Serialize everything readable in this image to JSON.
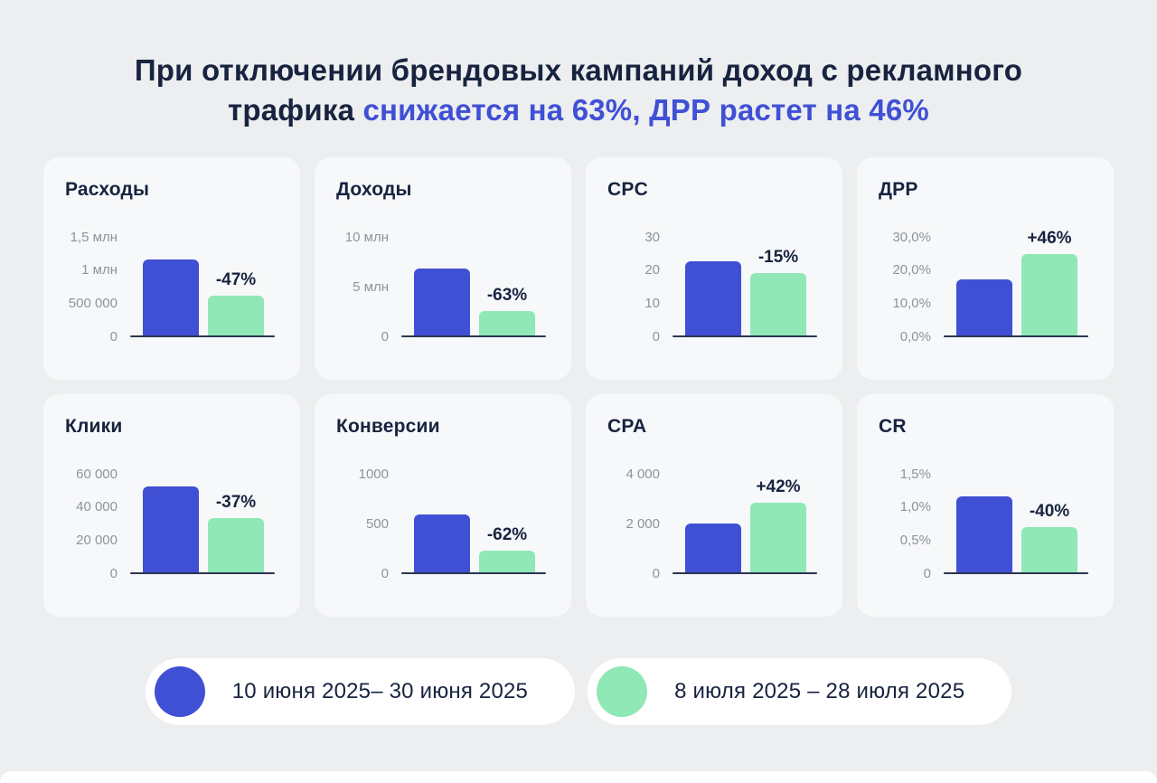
{
  "title": {
    "line1": "При отключении брендовых кампаний доход с рекламного",
    "line2_prefix": "трафика ",
    "line2_highlight": "снижается на 63%, ДРР растет на 46%"
  },
  "colors": {
    "background": "#ECEEF0",
    "card": "#F7F8F9",
    "text_dark": "#17233F",
    "accent_blue": "#4050D4",
    "bar_green": "#8FE8B5",
    "tick_gray": "#8E939C",
    "axis_line": "#2A3550",
    "legend_pill": "#FFFFFF"
  },
  "legend": {
    "items": [
      {
        "name": "period-1",
        "label": "10 июня 2025– 30 июня 2025",
        "color": "#4050D4"
      },
      {
        "name": "period-2",
        "label": "8 июля 2025 – 28 июля 2025",
        "color": "#8FE8B5"
      }
    ]
  },
  "chart_data": [
    {
      "type": "bar",
      "title": "Расходы",
      "ymax": 1.5,
      "grid": false,
      "legend_position": "bottom-shared",
      "categories": [
        "10 июня 2025– 30 июня 2025",
        "8 июля 2025 – 28 июля 2025"
      ],
      "ticks": [
        {
          "v": 1.5,
          "label": "1,5 млн"
        },
        {
          "v": 1.0,
          "label": "1 млн"
        },
        {
          "v": 0.5,
          "label": "500 000"
        },
        {
          "v": 0,
          "label": "0"
        }
      ],
      "values": [
        1.15,
        0.61
      ],
      "delta": "-47%"
    },
    {
      "type": "bar",
      "title": "Доходы",
      "ymax": 10,
      "grid": false,
      "legend_position": "bottom-shared",
      "categories": [
        "10 июня 2025– 30 июня 2025",
        "8 июля 2025 – 28 июля 2025"
      ],
      "ticks": [
        {
          "v": 10,
          "label": "10 млн"
        },
        {
          "v": 5,
          "label": "5 млн"
        },
        {
          "v": 0,
          "label": "0"
        }
      ],
      "values": [
        6.8,
        2.5
      ],
      "delta": "-63%"
    },
    {
      "type": "bar",
      "title": "CPC",
      "ymax": 30,
      "grid": false,
      "legend_position": "bottom-shared",
      "categories": [
        "10 июня 2025– 30 июня 2025",
        "8 июля 2025 – 28 июля 2025"
      ],
      "ticks": [
        {
          "v": 30,
          "label": "30"
        },
        {
          "v": 20,
          "label": "20"
        },
        {
          "v": 10,
          "label": "10"
        },
        {
          "v": 0,
          "label": "0"
        }
      ],
      "values": [
        22.5,
        19.1
      ],
      "delta": "-15%"
    },
    {
      "type": "bar",
      "title": "ДРР",
      "ymax": 30,
      "grid": false,
      "legend_position": "bottom-shared",
      "categories": [
        "10 июня 2025– 30 июня 2025",
        "8 июля 2025 – 28 июля 2025"
      ],
      "ticks": [
        {
          "v": 30,
          "label": "30,0%"
        },
        {
          "v": 20,
          "label": "20,0%"
        },
        {
          "v": 10,
          "label": "10,0%"
        },
        {
          "v": 0,
          "label": "0,0%"
        }
      ],
      "values": [
        17.0,
        24.8
      ],
      "delta": "+46%"
    },
    {
      "type": "bar",
      "title": "Клики",
      "ymax": 60000,
      "grid": false,
      "legend_position": "bottom-shared",
      "categories": [
        "10 июня 2025– 30 июня 2025",
        "8 июля 2025 – 28 июля 2025"
      ],
      "ticks": [
        {
          "v": 60000,
          "label": "60 000"
        },
        {
          "v": 40000,
          "label": "40 000"
        },
        {
          "v": 20000,
          "label": "20 000"
        },
        {
          "v": 0,
          "label": "0"
        }
      ],
      "values": [
        52500,
        33000
      ],
      "delta": "-37%"
    },
    {
      "type": "bar",
      "title": "Конверсии",
      "ymax": 1000,
      "grid": false,
      "legend_position": "bottom-shared",
      "categories": [
        "10 июня 2025– 30 июня 2025",
        "8 июля 2025 – 28 июля 2025"
      ],
      "ticks": [
        {
          "v": 1000,
          "label": "1000"
        },
        {
          "v": 500,
          "label": "500"
        },
        {
          "v": 0,
          "label": "0"
        }
      ],
      "values": [
        585,
        222
      ],
      "delta": "-62%"
    },
    {
      "type": "bar",
      "title": "CPA",
      "ymax": 4000,
      "grid": false,
      "legend_position": "bottom-shared",
      "categories": [
        "10 июня 2025– 30 июня 2025",
        "8 июля 2025 – 28 июля 2025"
      ],
      "ticks": [
        {
          "v": 4000,
          "label": "4 000"
        },
        {
          "v": 2000,
          "label": "2 000"
        },
        {
          "v": 0,
          "label": "0"
        }
      ],
      "values": [
        2000,
        2840
      ],
      "delta": "+42%"
    },
    {
      "type": "bar",
      "title": "CR",
      "ymax": 1.5,
      "grid": false,
      "legend_position": "bottom-shared",
      "categories": [
        "10 июня 2025– 30 июня 2025",
        "8 июля 2025 – 28 июля 2025"
      ],
      "ticks": [
        {
          "v": 1.5,
          "label": "1,5%"
        },
        {
          "v": 1.0,
          "label": "1,0%"
        },
        {
          "v": 0.5,
          "label": "0,5%"
        },
        {
          "v": 0,
          "label": "0"
        }
      ],
      "values": [
        1.15,
        0.69
      ],
      "delta": "-40%"
    }
  ]
}
